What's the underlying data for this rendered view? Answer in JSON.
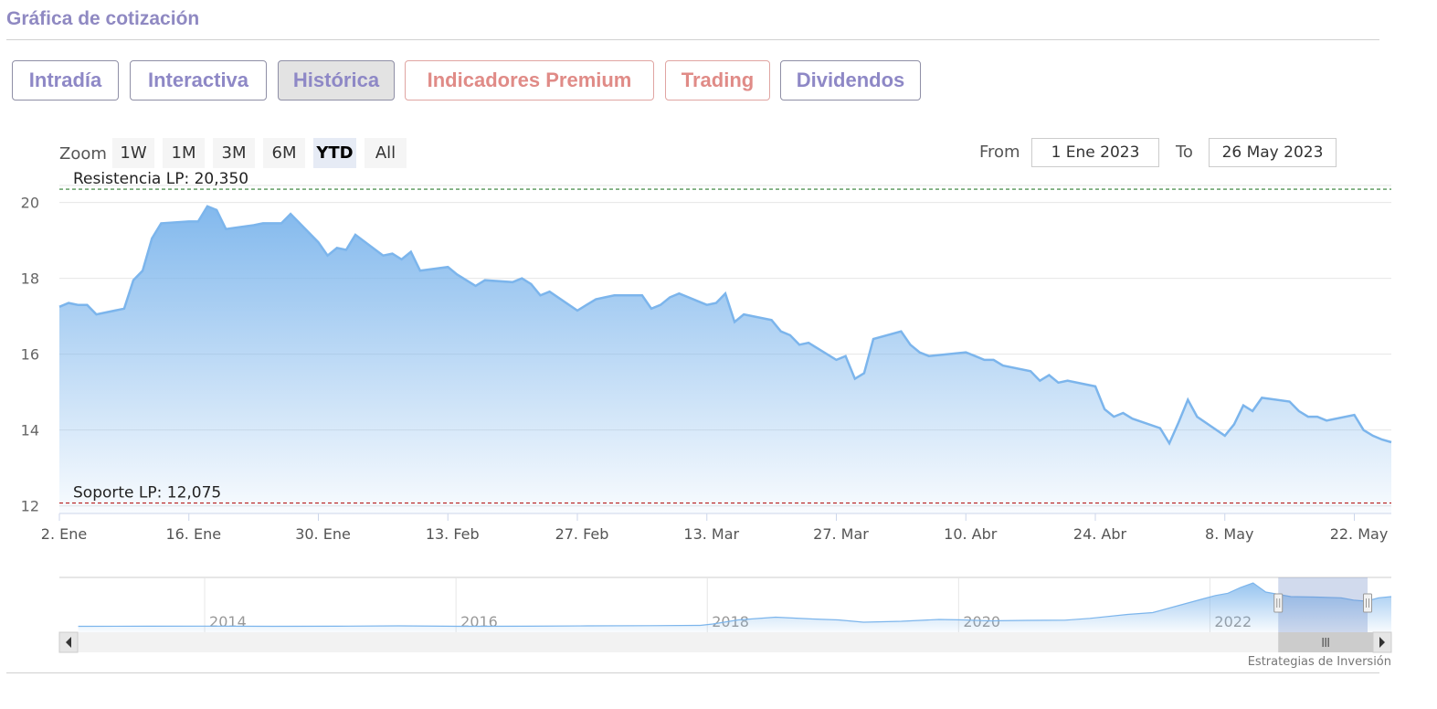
{
  "header": {
    "title": "Gráfica de cotización"
  },
  "tabs": [
    {
      "label": "Intradía",
      "style": "purple",
      "active": false
    },
    {
      "label": "Interactiva",
      "style": "purple",
      "active": false
    },
    {
      "label": "Histórica",
      "style": "purple",
      "active": true
    },
    {
      "label": "Indicadores Premium",
      "style": "red",
      "active": false
    },
    {
      "label": "Trading",
      "style": "red",
      "active": false
    },
    {
      "label": "Dividendos",
      "style": "purple",
      "active": false
    }
  ],
  "range_selector": {
    "zoom_label": "Zoom",
    "buttons": [
      "1W",
      "1M",
      "3M",
      "6M",
      "YTD",
      "All"
    ],
    "selected": "YTD",
    "from_label": "From",
    "from_value": "1 Ene 2023",
    "to_label": "To",
    "to_value": "26 May 2023"
  },
  "colors": {
    "line": "#7cb5ec",
    "resistance": "#2e7d32",
    "support": "#b71c1c",
    "title": "#8f89c2",
    "red_tab": "#e08b87"
  },
  "credit": "Estrategias de Inversión",
  "chart_data": [
    {
      "type": "area",
      "x_tick_labels": [
        "2. Ene",
        "16. Ene",
        "30. Ene",
        "13. Feb",
        "27. Feb",
        "13. Mar",
        "27. Mar",
        "10. Abr",
        "24. Abr",
        "8. May",
        "22. May"
      ],
      "y_tick_labels": [
        "12",
        "14",
        "16",
        "18",
        "20"
      ],
      "ylim": [
        11.8,
        20.4
      ],
      "xlim": [
        "2023-01-02",
        "2023-05-26"
      ],
      "grid": true,
      "points": [
        [
          "2023-01-02",
          17.25
        ],
        [
          "2023-01-03",
          17.35
        ],
        [
          "2023-01-04",
          17.3
        ],
        [
          "2023-01-05",
          17.3
        ],
        [
          "2023-01-06",
          17.05
        ],
        [
          "2023-01-09",
          17.2
        ],
        [
          "2023-01-10",
          17.95
        ],
        [
          "2023-01-11",
          18.2
        ],
        [
          "2023-01-12",
          19.05
        ],
        [
          "2023-01-13",
          19.45
        ],
        [
          "2023-01-16",
          19.5
        ],
        [
          "2023-01-17",
          19.5
        ],
        [
          "2023-01-18",
          19.9
        ],
        [
          "2023-01-19",
          19.8
        ],
        [
          "2023-01-20",
          19.3
        ],
        [
          "2023-01-23",
          19.4
        ],
        [
          "2023-01-24",
          19.45
        ],
        [
          "2023-01-25",
          19.45
        ],
        [
          "2023-01-26",
          19.45
        ],
        [
          "2023-01-27",
          19.7
        ],
        [
          "2023-01-30",
          18.95
        ],
        [
          "2023-01-31",
          18.6
        ],
        [
          "2023-02-01",
          18.8
        ],
        [
          "2023-02-02",
          18.75
        ],
        [
          "2023-02-03",
          19.15
        ],
        [
          "2023-02-06",
          18.6
        ],
        [
          "2023-02-07",
          18.65
        ],
        [
          "2023-02-08",
          18.5
        ],
        [
          "2023-02-09",
          18.7
        ],
        [
          "2023-02-10",
          18.2
        ],
        [
          "2023-02-13",
          18.3
        ],
        [
          "2023-02-14",
          18.1
        ],
        [
          "2023-02-15",
          17.95
        ],
        [
          "2023-02-16",
          17.8
        ],
        [
          "2023-02-17",
          17.95
        ],
        [
          "2023-02-20",
          17.9
        ],
        [
          "2023-02-21",
          18.0
        ],
        [
          "2023-02-22",
          17.85
        ],
        [
          "2023-02-23",
          17.55
        ],
        [
          "2023-02-24",
          17.65
        ],
        [
          "2023-02-27",
          17.15
        ],
        [
          "2023-02-28",
          17.3
        ],
        [
          "2023-03-01",
          17.45
        ],
        [
          "2023-03-02",
          17.5
        ],
        [
          "2023-03-03",
          17.55
        ],
        [
          "2023-03-06",
          17.55
        ],
        [
          "2023-03-07",
          17.2
        ],
        [
          "2023-03-08",
          17.3
        ],
        [
          "2023-03-09",
          17.5
        ],
        [
          "2023-03-10",
          17.6
        ],
        [
          "2023-03-13",
          17.3
        ],
        [
          "2023-03-14",
          17.35
        ],
        [
          "2023-03-15",
          17.6
        ],
        [
          "2023-03-16",
          16.85
        ],
        [
          "2023-03-17",
          17.05
        ],
        [
          "2023-03-20",
          16.9
        ],
        [
          "2023-03-21",
          16.6
        ],
        [
          "2023-03-22",
          16.5
        ],
        [
          "2023-03-23",
          16.25
        ],
        [
          "2023-03-24",
          16.3
        ],
        [
          "2023-03-27",
          15.85
        ],
        [
          "2023-03-28",
          15.95
        ],
        [
          "2023-03-29",
          15.35
        ],
        [
          "2023-03-30",
          15.5
        ],
        [
          "2023-03-31",
          16.4
        ],
        [
          "2023-04-03",
          16.6
        ],
        [
          "2023-04-04",
          16.25
        ],
        [
          "2023-04-05",
          16.05
        ],
        [
          "2023-04-06",
          15.95
        ],
        [
          "2023-04-10",
          16.05
        ],
        [
          "2023-04-11",
          15.95
        ],
        [
          "2023-04-12",
          15.85
        ],
        [
          "2023-04-13",
          15.85
        ],
        [
          "2023-04-14",
          15.7
        ],
        [
          "2023-04-17",
          15.55
        ],
        [
          "2023-04-18",
          15.3
        ],
        [
          "2023-04-19",
          15.45
        ],
        [
          "2023-04-20",
          15.25
        ],
        [
          "2023-04-21",
          15.3
        ],
        [
          "2023-04-24",
          15.15
        ],
        [
          "2023-04-25",
          14.55
        ],
        [
          "2023-04-26",
          14.35
        ],
        [
          "2023-04-27",
          14.45
        ],
        [
          "2023-04-28",
          14.3
        ],
        [
          "2023-05-01",
          14.05
        ],
        [
          "2023-05-02",
          13.65
        ],
        [
          "2023-05-03",
          14.2
        ],
        [
          "2023-05-04",
          14.8
        ],
        [
          "2023-05-05",
          14.35
        ],
        [
          "2023-05-08",
          13.85
        ],
        [
          "2023-05-09",
          14.15
        ],
        [
          "2023-05-10",
          14.65
        ],
        [
          "2023-05-11",
          14.5
        ],
        [
          "2023-05-12",
          14.85
        ],
        [
          "2023-05-15",
          14.75
        ],
        [
          "2023-05-16",
          14.5
        ],
        [
          "2023-05-17",
          14.35
        ],
        [
          "2023-05-18",
          14.35
        ],
        [
          "2023-05-19",
          14.25
        ],
        [
          "2023-05-22",
          14.4
        ],
        [
          "2023-05-23",
          14.0
        ],
        [
          "2023-05-24",
          13.85
        ],
        [
          "2023-05-25",
          13.75
        ]
      ],
      "plot_lines": [
        {
          "label": "Resistencia LP: 20,350",
          "value": 20.35,
          "color": "#2e7d32",
          "dash": true
        },
        {
          "label": "Soporte LP: 12,075",
          "value": 12.075,
          "color": "#b71c1c",
          "dash": true
        }
      ]
    },
    {
      "type": "area",
      "role": "navigator",
      "x_tick_labels": [
        "2014",
        "2016",
        "2018",
        "2020",
        "2022"
      ],
      "xlim": [
        2012.8,
        2023.4
      ],
      "ylim": [
        0,
        20
      ],
      "selected_range": [
        2022.9,
        2023.4
      ],
      "points": [
        [
          2012.95,
          1.0
        ],
        [
          2013.5,
          1.05
        ],
        [
          2014.0,
          1.1
        ],
        [
          2014.5,
          1.0
        ],
        [
          2015.0,
          1.05
        ],
        [
          2015.5,
          1.2
        ],
        [
          2016.0,
          1.0
        ],
        [
          2016.5,
          1.05
        ],
        [
          2017.0,
          1.2
        ],
        [
          2017.5,
          1.3
        ],
        [
          2017.9,
          1.4
        ],
        [
          2018.0,
          2.0
        ],
        [
          2018.2,
          3.8
        ],
        [
          2018.5,
          5.0
        ],
        [
          2018.8,
          4.2
        ],
        [
          2019.0,
          3.8
        ],
        [
          2019.2,
          2.8
        ],
        [
          2019.5,
          3.2
        ],
        [
          2019.8,
          4.0
        ],
        [
          2020.0,
          3.8
        ],
        [
          2020.2,
          3.4
        ],
        [
          2020.5,
          3.6
        ],
        [
          2020.8,
          3.7
        ],
        [
          2021.0,
          4.5
        ],
        [
          2021.3,
          6.2
        ],
        [
          2021.5,
          7.0
        ],
        [
          2021.7,
          10.0
        ],
        [
          2021.9,
          13.0
        ],
        [
          2022.0,
          14.5
        ],
        [
          2022.1,
          15.5
        ],
        [
          2022.2,
          18.0
        ],
        [
          2022.3,
          20.0
        ],
        [
          2022.4,
          16.0
        ],
        [
          2022.6,
          14.0
        ],
        [
          2022.8,
          13.8
        ],
        [
          2023.0,
          13.5
        ],
        [
          2023.1,
          12.5
        ],
        [
          2023.2,
          12.0
        ],
        [
          2023.3,
          13.5
        ],
        [
          2023.4,
          14.0
        ]
      ]
    }
  ]
}
